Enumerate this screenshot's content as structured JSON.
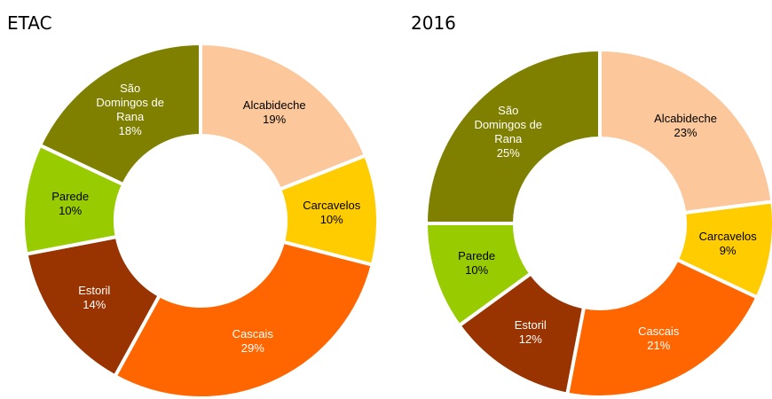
{
  "chart_data": [
    {
      "type": "donut",
      "title": "ETAC",
      "categories": [
        "Alcabideche",
        "Carcavelos",
        "Cascais",
        "Estoril",
        "Parede",
        "São Domingos de Rana"
      ],
      "values": [
        19,
        10,
        29,
        14,
        10,
        18
      ],
      "value_labels": [
        "19%",
        "10%",
        "29%",
        "14%",
        "10%",
        "18%"
      ],
      "colors": [
        "#fcc89b",
        "#ffcc00",
        "#ff6600",
        "#993300",
        "#99cc00",
        "#808000"
      ]
    },
    {
      "type": "donut",
      "title": "2016",
      "categories": [
        "Alcabideche",
        "Carcavelos",
        "Cascais",
        "Estoril",
        "Parede",
        "São Domingos de Rana"
      ],
      "values": [
        23,
        9,
        21,
        12,
        10,
        25
      ],
      "value_labels": [
        "23%",
        "9%",
        "21%",
        "12%",
        "10%",
        "25%"
      ],
      "colors": [
        "#fcc89b",
        "#ffcc00",
        "#ff6600",
        "#993300",
        "#99cc00",
        "#808000"
      ]
    }
  ]
}
